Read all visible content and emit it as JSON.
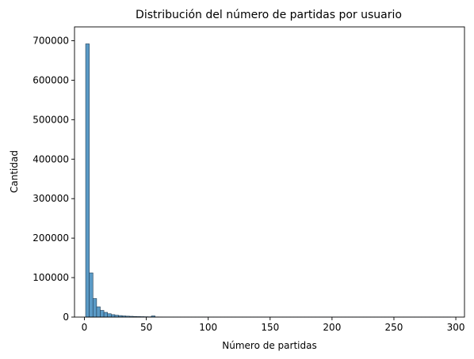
{
  "chart_data": {
    "type": "bar",
    "title": "Distribución del número de partidas por usuario",
    "xlabel": "Número de partidas",
    "ylabel": "Cantidad",
    "xlim": [
      -8,
      307
    ],
    "ylim": [
      0,
      735000
    ],
    "xticks": [
      0,
      50,
      100,
      150,
      200,
      250,
      300
    ],
    "yticks": [
      0,
      100000,
      200000,
      300000,
      400000,
      500000,
      600000,
      700000
    ],
    "bin_width": 2.95,
    "bin_start": 1,
    "bar_color": "#5a9ac6",
    "edge_color": "#1f3b52",
    "counts": [
      692000,
      112000,
      47000,
      26000,
      17000,
      12000,
      8500,
      6200,
      4800,
      3800,
      3000,
      2400,
      2000,
      1600,
      1300,
      1100,
      900,
      750,
      3000,
      500,
      420,
      350,
      300,
      250,
      210,
      180,
      150,
      130,
      110,
      95,
      80,
      70,
      60,
      52,
      45,
      40,
      35,
      30,
      26,
      22,
      20,
      18,
      16,
      14,
      12,
      11,
      10,
      9,
      8,
      7,
      6,
      6,
      5,
      5,
      4,
      4,
      4,
      3,
      3,
      3,
      3,
      2,
      2,
      2,
      2,
      2,
      2,
      2,
      1,
      1,
      1,
      1,
      1,
      1,
      1,
      1,
      1,
      1,
      1,
      1,
      1,
      1,
      1,
      1,
      1,
      1,
      1,
      1,
      1,
      1,
      1,
      1,
      1,
      1,
      1,
      1,
      1,
      1,
      1,
      1
    ],
    "grid": false,
    "legend": "none"
  }
}
